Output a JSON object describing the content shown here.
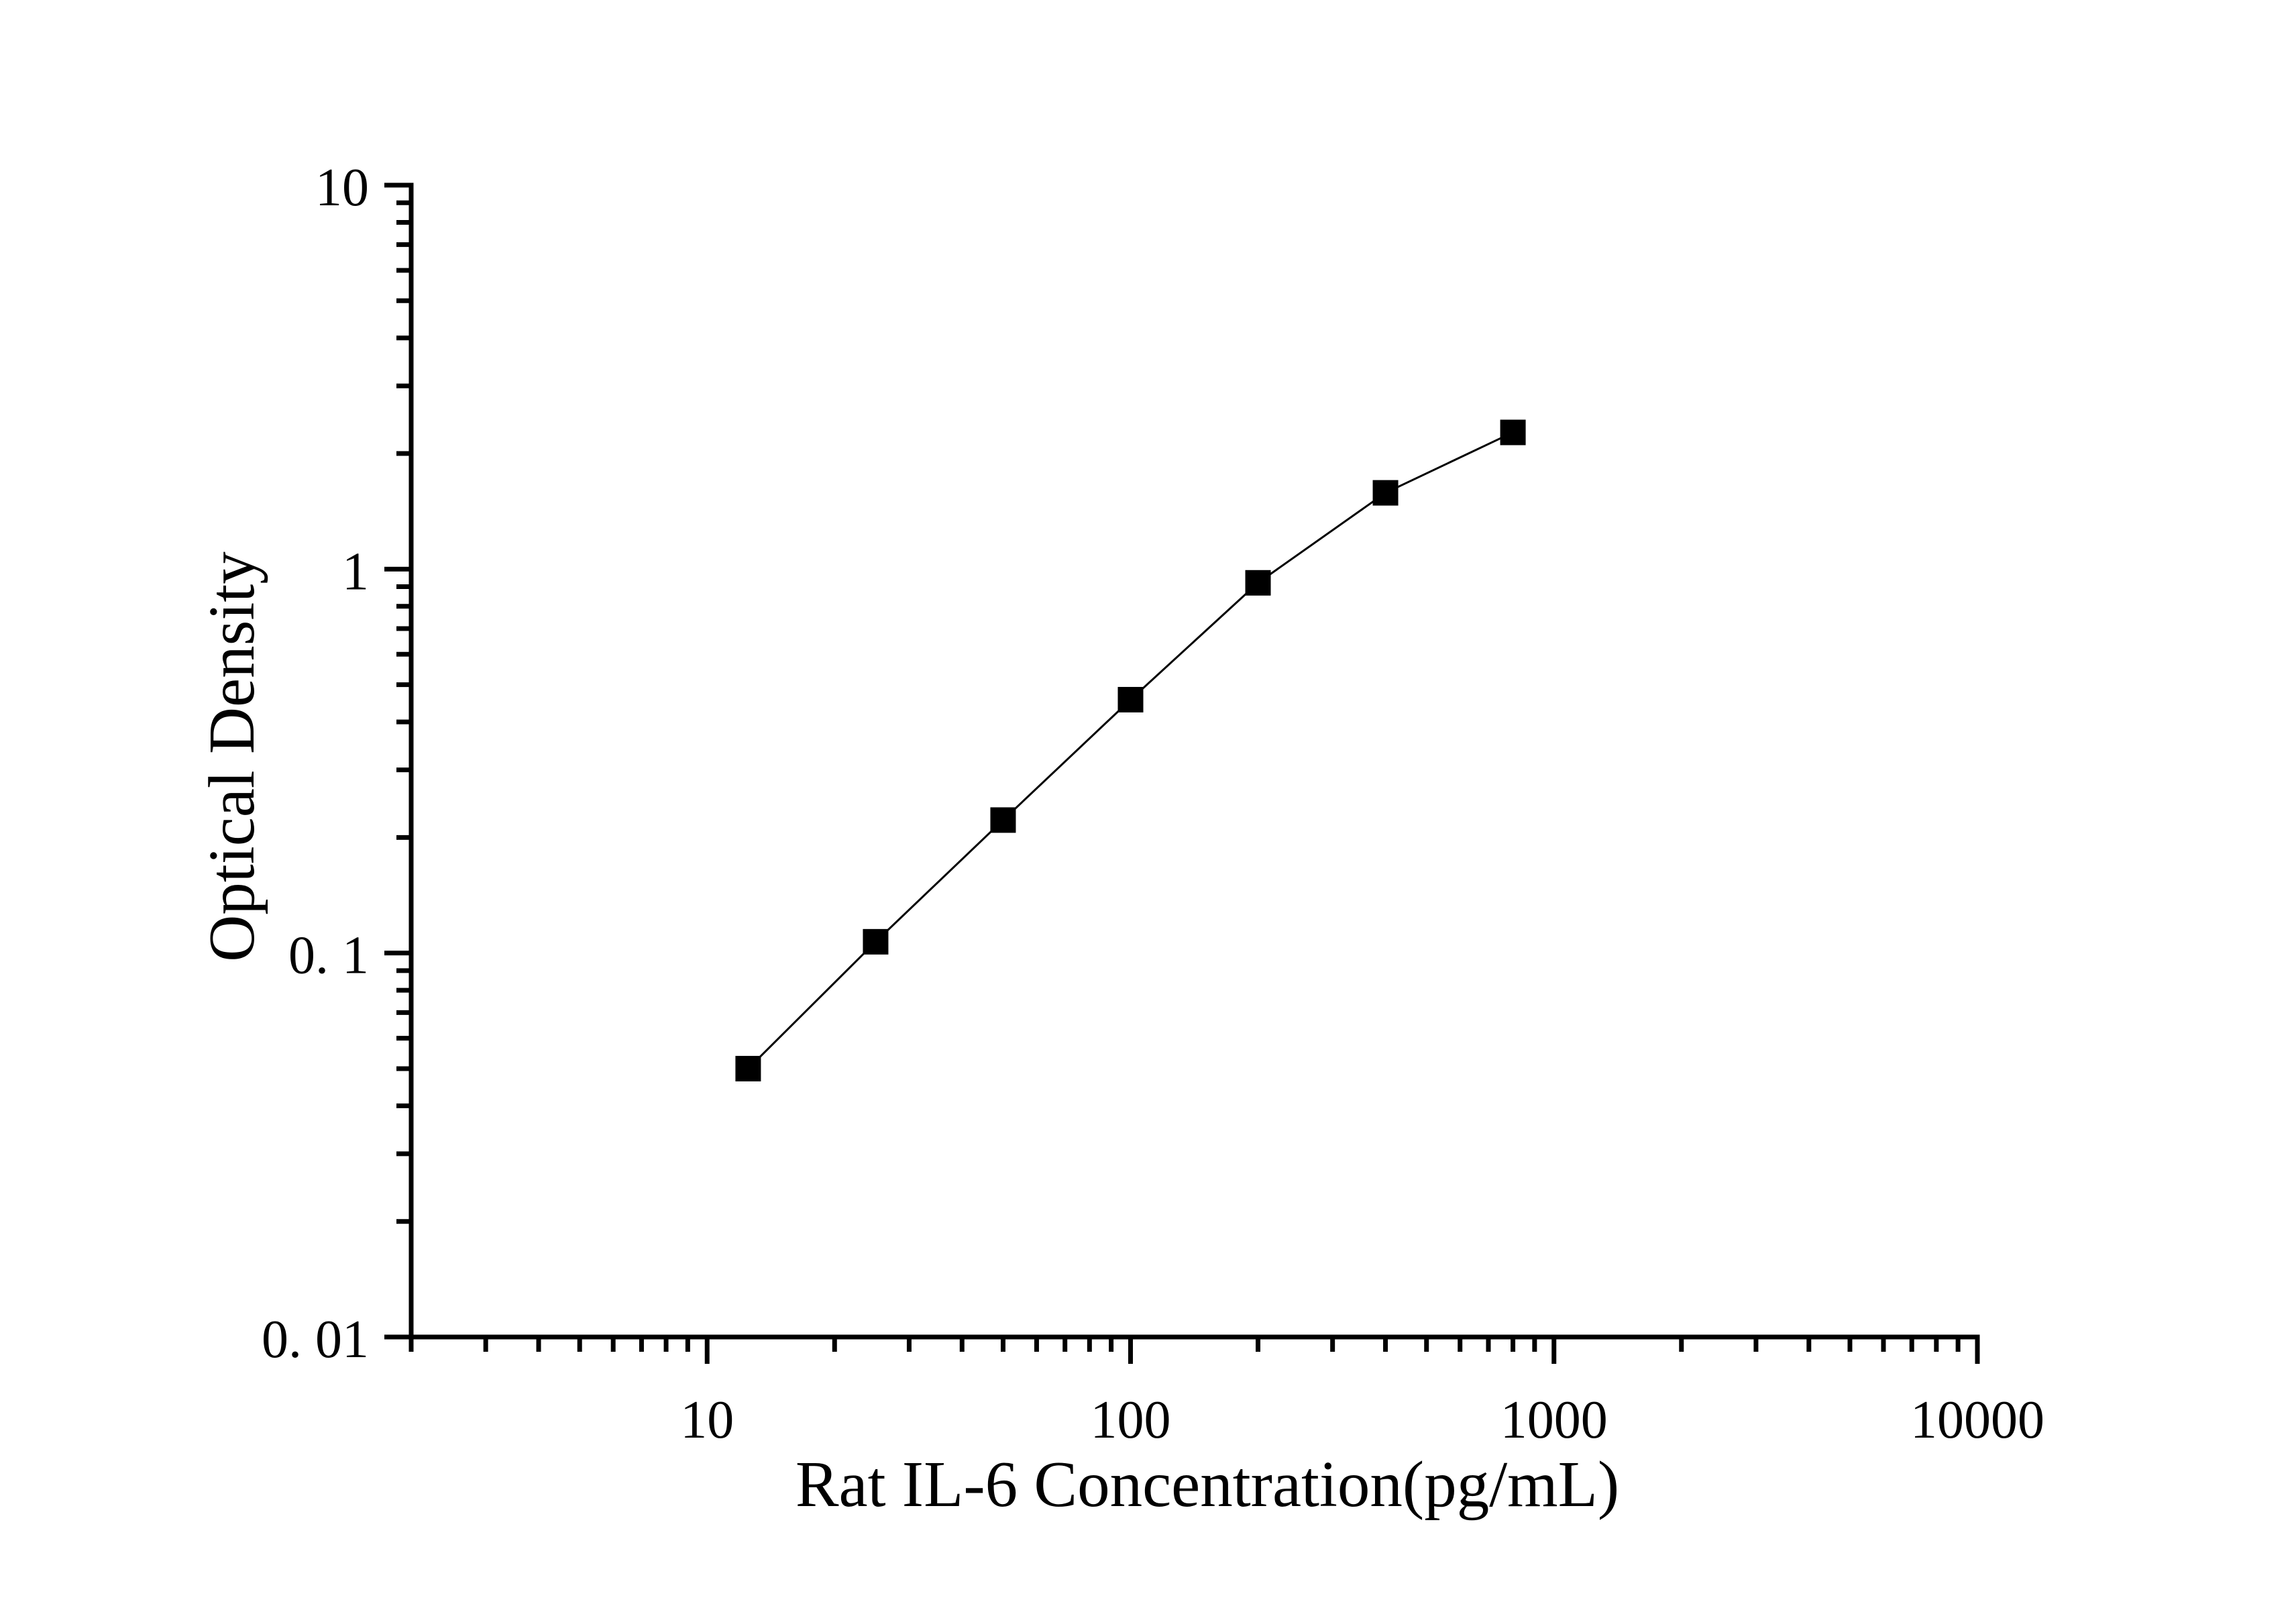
{
  "page": {
    "background_color": "#ffffff",
    "foreground_color": "#000000",
    "title": ""
  },
  "chart_data": {
    "type": "line",
    "title": "",
    "xlabel": "Rat IL-6 Concentration(pg/mL)",
    "ylabel": "Optical Density",
    "x_scale": "log",
    "y_scale": "log",
    "xlim": [
      2,
      10000
    ],
    "ylim": [
      0.01,
      10
    ],
    "grid": false,
    "legend": null,
    "x_ticks": [
      {
        "value": 10,
        "label": "10"
      },
      {
        "value": 100,
        "label": "100"
      },
      {
        "value": 1000,
        "label": "1000"
      },
      {
        "value": 10000,
        "label": "10000"
      }
    ],
    "y_ticks": [
      {
        "value": 10,
        "label": "10"
      },
      {
        "value": 1,
        "label": "1"
      },
      {
        "value": 0.1,
        "label": "0. 1"
      },
      {
        "value": 0.01,
        "label": "0. 01"
      }
    ],
    "series": [
      {
        "name": "standard-curve",
        "marker": "filled-square",
        "color": "#000000",
        "x": [
          12.5,
          25,
          50,
          100,
          200,
          400,
          800
        ],
        "y": [
          0.05,
          0.107,
          0.222,
          0.457,
          0.921,
          1.58,
          2.27
        ]
      }
    ]
  }
}
